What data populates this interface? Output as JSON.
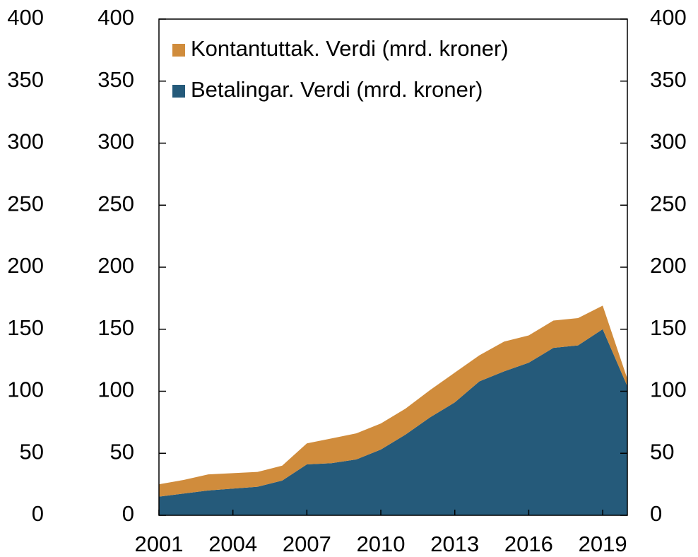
{
  "chart_data": {
    "type": "stacked_area",
    "x": [
      2001,
      2002,
      2003,
      2004,
      2005,
      2006,
      2007,
      2008,
      2009,
      2010,
      2011,
      2012,
      2013,
      2014,
      2015,
      2016,
      2017,
      2018,
      2019,
      2020
    ],
    "series": [
      {
        "name": "Kontantuttak. Verdi (mrd. kroner)",
        "color": "#d08c3c",
        "values": [
          10,
          11,
          13,
          12.5,
          12,
          12,
          17,
          20,
          21,
          21,
          21,
          22,
          24,
          21,
          24,
          22,
          22,
          22,
          19,
          6
        ]
      },
      {
        "name": "Betalingar. Verdi (mrd. kroner)",
        "color": "#255a7a",
        "values": [
          15,
          17.5,
          20,
          21.5,
          23,
          28,
          41,
          42,
          45,
          53,
          65,
          79,
          91,
          108,
          116,
          123,
          135,
          137,
          150,
          104
        ]
      }
    ],
    "xlim": [
      2001,
      2020
    ],
    "xticks": [
      2001,
      2004,
      2007,
      2010,
      2013,
      2016,
      2019
    ],
    "ylim": [
      0,
      400
    ],
    "yticks": [
      0,
      50,
      100,
      150,
      200,
      250,
      300,
      350,
      400
    ],
    "y2lim": [
      0,
      400
    ],
    "y2ticks": [
      0,
      50,
      100,
      150,
      200,
      250,
      300,
      350,
      400
    ],
    "legend": "top-left"
  }
}
